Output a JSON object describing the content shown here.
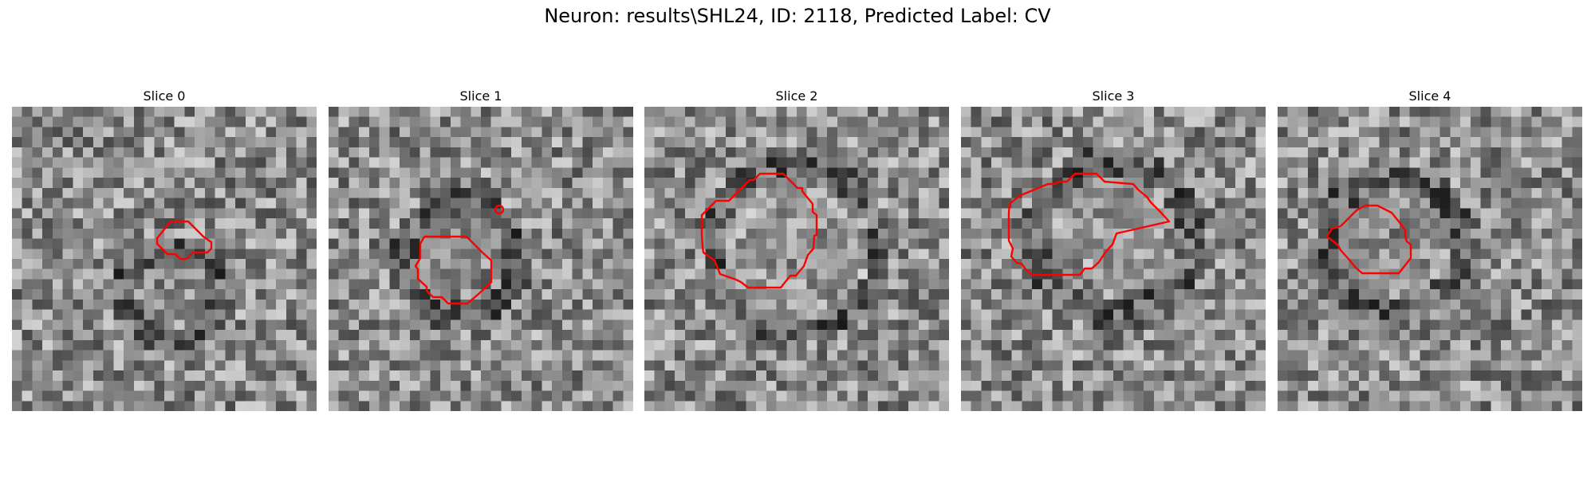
{
  "figure": {
    "title": "Neuron: results\\SHL24, ID: 2118, Predicted Label: CV"
  },
  "panels": [
    {
      "title": "Slice 0"
    },
    {
      "title": "Slice 1"
    },
    {
      "title": "Slice 2"
    },
    {
      "title": "Slice 3"
    },
    {
      "title": "Slice 4"
    }
  ],
  "colors": {
    "contour": "#ff0000",
    "colormap": "grayscale"
  }
}
